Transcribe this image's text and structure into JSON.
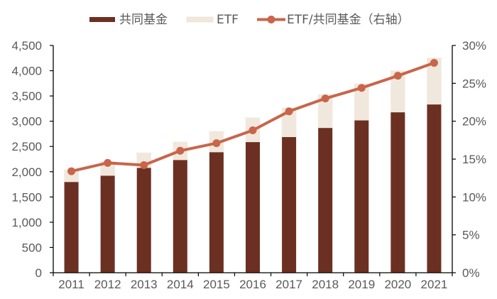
{
  "chart_data": {
    "type": "bar+line",
    "title": "",
    "xlabel": "",
    "ylabel": "",
    "y2label": "",
    "categories": [
      "2011",
      "2012",
      "2013",
      "2014",
      "2015",
      "2016",
      "2017",
      "2018",
      "2019",
      "2020",
      "2021"
    ],
    "series": [
      {
        "name": "共同基金",
        "type": "bar",
        "stack": "total",
        "axis": "left",
        "color": "#6B3022",
        "values": [
          1800,
          1925,
          2080,
          2235,
          2390,
          2590,
          2690,
          2870,
          3020,
          3180,
          3335
        ]
      },
      {
        "name": "ETF",
        "type": "bar",
        "stack": "total",
        "axis": "left",
        "color": "#F1E8DD",
        "values": [
          240,
          280,
          295,
          355,
          410,
          480,
          575,
          660,
          720,
          820,
          920
        ]
      },
      {
        "name": "ETF/共同基金（右轴）",
        "type": "line",
        "axis": "right",
        "color": "#C8654A",
        "unit": "%",
        "values": [
          13.4,
          14.5,
          14.2,
          16.1,
          17.1,
          18.8,
          21.3,
          23.0,
          24.4,
          26.0,
          27.7
        ]
      }
    ],
    "ylim": [
      0,
      4500
    ],
    "yticks": [
      0,
      500,
      1000,
      1500,
      2000,
      2500,
      3000,
      3500,
      4000,
      4500
    ],
    "ytick_labels": [
      "0",
      "500",
      "1,000",
      "1,500",
      "2,000",
      "2,500",
      "3,000",
      "3,500",
      "4,000",
      "4,500"
    ],
    "y2lim": [
      0,
      30
    ],
    "y2ticks": [
      0,
      5,
      10,
      15,
      20,
      25,
      30
    ],
    "y2tick_labels": [
      "0%",
      "5%",
      "10%",
      "15%",
      "20%",
      "25%",
      "30%"
    ],
    "grid": false,
    "legend_position": "top"
  },
  "legend": {
    "items": [
      {
        "label": "共同基金",
        "kind": "bar",
        "color": "#6B3022"
      },
      {
        "label": "ETF",
        "kind": "bar",
        "color": "#F1E8DD"
      },
      {
        "label": "ETF/共同基金（右轴）",
        "kind": "line",
        "color": "#C8654A"
      }
    ]
  }
}
